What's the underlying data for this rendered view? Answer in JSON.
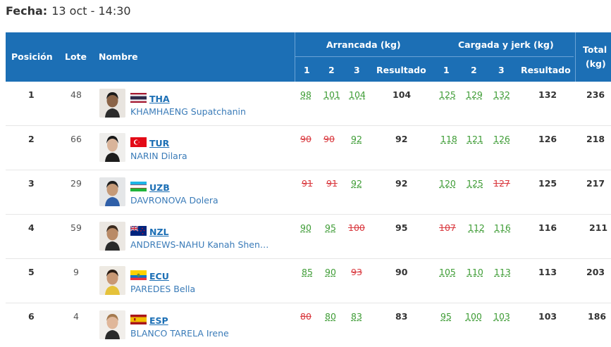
{
  "fecha": {
    "label": "Fecha:",
    "value": "13 oct - 14:30"
  },
  "header": {
    "posicion": "Posición",
    "lote": "Lote",
    "nombre": "Nombre",
    "arrancada": "Arrancada (kg)",
    "cargada": "Cargada y jerk (kg)",
    "total": "Total",
    "total_unit": "(kg)",
    "a1": "1",
    "a2": "2",
    "a3": "3",
    "aRes": "Resultado",
    "c1": "1",
    "c2": "2",
    "c3": "3",
    "cRes": "Resultado"
  },
  "rows": [
    {
      "pos": "1",
      "lote": "48",
      "ctry": "THA",
      "name": "KHAMHAENG Supatchanin",
      "a": [
        {
          "v": "98",
          "s": "ok"
        },
        {
          "v": "101",
          "s": "ok"
        },
        {
          "v": "104",
          "s": "ok"
        }
      ],
      "ar": "104",
      "c": [
        {
          "v": "125",
          "s": "ok"
        },
        {
          "v": "129",
          "s": "ok"
        },
        {
          "v": "132",
          "s": "ok"
        }
      ],
      "cr": "132",
      "total": "236"
    },
    {
      "pos": "2",
      "lote": "66",
      "ctry": "TUR",
      "name": "NARIN Dilara",
      "a": [
        {
          "v": "90",
          "s": "bad"
        },
        {
          "v": "90",
          "s": "bad"
        },
        {
          "v": "92",
          "s": "ok"
        }
      ],
      "ar": "92",
      "c": [
        {
          "v": "118",
          "s": "ok"
        },
        {
          "v": "121",
          "s": "ok"
        },
        {
          "v": "126",
          "s": "ok"
        }
      ],
      "cr": "126",
      "total": "218"
    },
    {
      "pos": "3",
      "lote": "29",
      "ctry": "UZB",
      "name": "DAVRONOVA Dolera",
      "a": [
        {
          "v": "91",
          "s": "bad"
        },
        {
          "v": "91",
          "s": "bad"
        },
        {
          "v": "92",
          "s": "ok"
        }
      ],
      "ar": "92",
      "c": [
        {
          "v": "120",
          "s": "ok"
        },
        {
          "v": "125",
          "s": "ok"
        },
        {
          "v": "127",
          "s": "bad"
        }
      ],
      "cr": "125",
      "total": "217"
    },
    {
      "pos": "4",
      "lote": "59",
      "ctry": "NZL",
      "name": "ANDREWS-NAHU Kanah Shen…",
      "a": [
        {
          "v": "90",
          "s": "ok"
        },
        {
          "v": "95",
          "s": "ok"
        },
        {
          "v": "100",
          "s": "bad"
        }
      ],
      "ar": "95",
      "c": [
        {
          "v": "107",
          "s": "bad"
        },
        {
          "v": "112",
          "s": "ok"
        },
        {
          "v": "116",
          "s": "ok"
        }
      ],
      "cr": "116",
      "total": "211"
    },
    {
      "pos": "5",
      "lote": "9",
      "ctry": "ECU",
      "name": "PAREDES Bella",
      "a": [
        {
          "v": "85",
          "s": "ok"
        },
        {
          "v": "90",
          "s": "ok"
        },
        {
          "v": "93",
          "s": "bad"
        }
      ],
      "ar": "90",
      "c": [
        {
          "v": "105",
          "s": "ok"
        },
        {
          "v": "110",
          "s": "ok"
        },
        {
          "v": "113",
          "s": "ok"
        }
      ],
      "cr": "113",
      "total": "203"
    },
    {
      "pos": "6",
      "lote": "4",
      "ctry": "ESP",
      "name": "BLANCO TARELA Irene",
      "a": [
        {
          "v": "80",
          "s": "bad"
        },
        {
          "v": "80",
          "s": "ok"
        },
        {
          "v": "83",
          "s": "ok"
        }
      ],
      "ar": "83",
      "c": [
        {
          "v": "95",
          "s": "ok"
        },
        {
          "v": "100",
          "s": "ok"
        },
        {
          "v": "103",
          "s": "ok"
        }
      ],
      "cr": "103",
      "total": "186"
    }
  ],
  "colors": {
    "header": "#1c6fb5",
    "good": "#3e9c35",
    "fail": "#d9373d",
    "link": "#1c6fb5"
  }
}
